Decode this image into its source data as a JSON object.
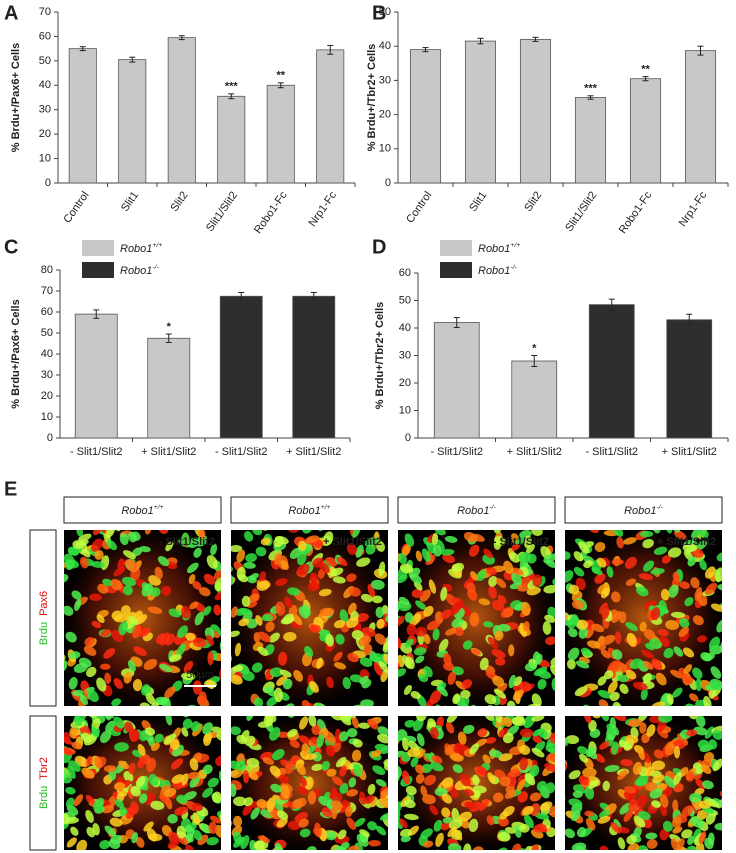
{
  "chart_data": [
    {
      "type": "bar",
      "panel": "A",
      "y_label": "% Brdu+/Pax6+ Cells",
      "categories": [
        "Control",
        "Slit1",
        "Slit2",
        "Slit1/Slit2",
        "Robo1-Fc",
        "Nrp1-Fc"
      ],
      "values": [
        55,
        50.5,
        59.5,
        35.5,
        40,
        54.5
      ],
      "errors": [
        0.8,
        1,
        0.8,
        1,
        1,
        1.8
      ],
      "significance": [
        null,
        null,
        null,
        "***",
        "**",
        null
      ],
      "color": "#c8c8c8",
      "ylim": [
        0,
        70
      ],
      "yticks": [
        0,
        10,
        20,
        30,
        40,
        50,
        60,
        70
      ]
    },
    {
      "type": "bar",
      "panel": "B",
      "y_label": "% Brdu+/Tbr2+ Cells",
      "categories": [
        "Control",
        "Slit1",
        "Slit2",
        "Slit1/Slit2",
        "Robo1-Fc",
        "Nrp1-Fc"
      ],
      "values": [
        39,
        41.5,
        42,
        25,
        30.5,
        38.7
      ],
      "errors": [
        0.6,
        0.8,
        0.6,
        0.5,
        0.6,
        1.3
      ],
      "significance": [
        null,
        null,
        null,
        "***",
        "**",
        null
      ],
      "color": "#c8c8c8",
      "ylim": [
        0,
        50
      ],
      "yticks": [
        0,
        10,
        20,
        30,
        40,
        50
      ]
    },
    {
      "type": "bar",
      "panel": "C",
      "y_label": "% Brdu+/Pax6+ Cells",
      "categories": [
        "- Slit1/Slit2",
        "+ Slit1/Slit2",
        "- Slit1/Slit2",
        "+ Slit1/Slit2"
      ],
      "series": [
        {
          "name": "Robo1+/+",
          "color": "#c8c8c8",
          "values": [
            59,
            47.5,
            null,
            null
          ],
          "errors": [
            2,
            2,
            null,
            null
          ]
        },
        {
          "name": "Robo1-/-",
          "color": "#2e2e2e",
          "values": [
            null,
            null,
            67.5,
            67.5
          ],
          "errors": [
            null,
            null,
            1.8,
            1.8
          ]
        }
      ],
      "significance": [
        null,
        "*",
        null,
        null
      ],
      "ylim": [
        0,
        80
      ],
      "yticks": [
        0,
        10,
        20,
        30,
        40,
        50,
        60,
        70,
        80
      ]
    },
    {
      "type": "bar",
      "panel": "D",
      "y_label": "% Brdu+/Tbr2+ Cells",
      "categories": [
        "- Slit1/Slit2",
        "+ Slit1/Slit2",
        "- Slit1/Slit2",
        "+ Slit1/Slit2"
      ],
      "series": [
        {
          "name": "Robo1+/+",
          "color": "#c8c8c8",
          "values": [
            42,
            28,
            null,
            null
          ],
          "errors": [
            1.8,
            2,
            null,
            null
          ]
        },
        {
          "name": "Robo1-/-",
          "color": "#2e2e2e",
          "values": [
            null,
            null,
            48.5,
            43
          ],
          "errors": [
            null,
            null,
            2,
            2
          ]
        }
      ],
      "significance": [
        null,
        "*",
        null,
        null
      ],
      "ylim": [
        0,
        60
      ],
      "yticks": [
        0,
        10,
        20,
        30,
        40,
        50,
        60
      ]
    }
  ],
  "figure_e": {
    "panel": "E",
    "columns": [
      "Robo1+/+",
      "Robo1+/+",
      "Robo1-/-",
      "Robo1-/-"
    ],
    "conditions": [
      "- Slit1/Slit2",
      "+ Slit1/Slit2",
      "- Slit1/Slit2",
      "+ Slit1/Slit2"
    ],
    "rows": [
      {
        "labels": [
          "Brdu",
          "Pax6"
        ]
      },
      {
        "labels": [
          "Brdu",
          "Tbr2"
        ]
      }
    ],
    "scale_bar": "50µm"
  }
}
